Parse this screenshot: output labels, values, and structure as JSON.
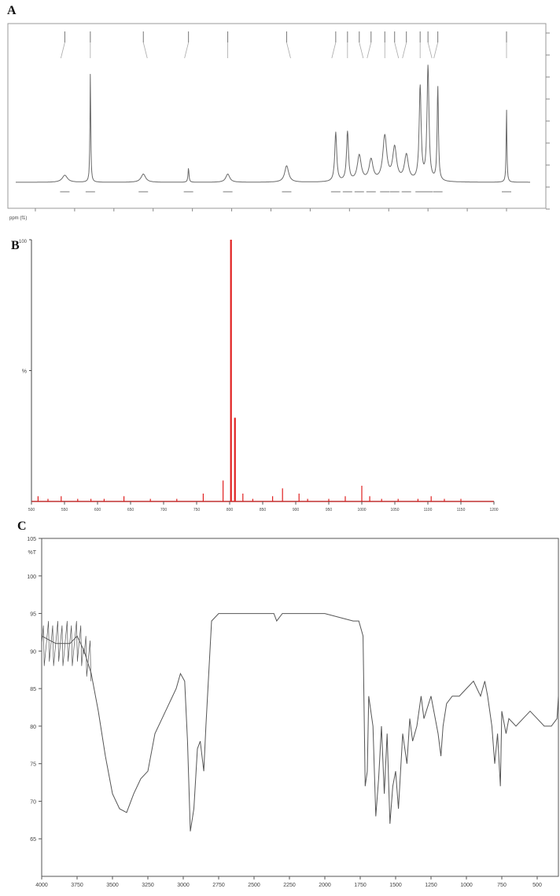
{
  "panels": {
    "a": {
      "letter": "A"
    },
    "b": {
      "letter": "B"
    },
    "c": {
      "letter": "C"
    }
  },
  "chart_data": [
    {
      "type": "line",
      "panel": "A",
      "title": "",
      "xlabel": "ppm (f1)",
      "ylabel": "",
      "reversed_x": true,
      "xlim": [
        12.5,
        0.0
      ],
      "grid": false,
      "legend": "none",
      "color": "#6a6a6a",
      "peaks": [
        {
          "ppm": 11.25,
          "h": 0.06,
          "w": 0.08
        },
        {
          "ppm": 10.6,
          "h": 0.92,
          "w": 0.012
        },
        {
          "ppm": 9.25,
          "h": 0.07,
          "w": 0.07
        },
        {
          "ppm": 8.1,
          "h": 0.12,
          "w": 0.015
        },
        {
          "ppm": 7.1,
          "h": 0.07,
          "w": 0.06
        },
        {
          "ppm": 5.6,
          "h": 0.14,
          "w": 0.06
        },
        {
          "ppm": 4.35,
          "h": 0.42,
          "w": 0.03
        },
        {
          "ppm": 4.05,
          "h": 0.42,
          "w": 0.03
        },
        {
          "ppm": 3.75,
          "h": 0.22,
          "w": 0.06
        },
        {
          "ppm": 3.45,
          "h": 0.18,
          "w": 0.06
        },
        {
          "ppm": 3.1,
          "h": 0.38,
          "w": 0.06
        },
        {
          "ppm": 2.85,
          "h": 0.28,
          "w": 0.06
        },
        {
          "ppm": 2.55,
          "h": 0.22,
          "w": 0.06
        },
        {
          "ppm": 2.2,
          "h": 0.8,
          "w": 0.03
        },
        {
          "ppm": 2.0,
          "h": 0.97,
          "w": 0.03
        },
        {
          "ppm": 1.75,
          "h": 0.8,
          "w": 0.02
        },
        {
          "ppm": 0.0,
          "h": 0.62,
          "w": 0.012
        }
      ]
    },
    {
      "type": "bar",
      "panel": "B",
      "title": "",
      "xlabel": "",
      "ylabel": "%",
      "xlim": [
        500,
        1200
      ],
      "ylim": [
        0,
        100
      ],
      "grid": false,
      "legend": "top-right",
      "color": "#e02020",
      "x_ticks": [
        500,
        550,
        600,
        650,
        700,
        750,
        800,
        850,
        900,
        950,
        1000,
        1050,
        1100,
        1150,
        1200
      ],
      "series": [
        {
          "x": [
            510,
            525,
            545,
            570,
            590,
            610,
            640,
            680,
            720,
            760,
            790,
            802,
            808,
            820,
            835,
            865,
            880,
            905,
            918,
            950,
            975,
            1000,
            1012,
            1030,
            1055,
            1085,
            1105,
            1125,
            1150
          ],
          "values": [
            2,
            1,
            2,
            1,
            1,
            1,
            2,
            1,
            1,
            3,
            8,
            100,
            32,
            3,
            1,
            2,
            5,
            3,
            1,
            1,
            2,
            6,
            2,
            1,
            1,
            1,
            2,
            1,
            1
          ]
        }
      ]
    },
    {
      "type": "line",
      "panel": "C",
      "title": "",
      "xlabel": "",
      "ylabel": "%T",
      "reversed_x": true,
      "xlim": [
        4000,
        350
      ],
      "ylim": [
        60,
        105
      ],
      "grid": false,
      "legend": "none",
      "color": "#555555",
      "x_ticks": [
        4000,
        3750,
        3500,
        3250,
        3000,
        2750,
        2500,
        2250,
        2000,
        1750,
        1500,
        1250,
        1000,
        750,
        500
      ],
      "y_ticks": [
        65,
        70,
        75,
        80,
        85,
        90,
        95,
        100,
        105
      ],
      "series": [
        {
          "x": [
            4000,
            3900,
            3800,
            3750,
            3700,
            3650,
            3600,
            3550,
            3500,
            3450,
            3400,
            3350,
            3300,
            3250,
            3200,
            3150,
            3100,
            3050,
            3020,
            2990,
            2970,
            2950,
            2925,
            2900,
            2880,
            2855,
            2840,
            2800,
            2750,
            2700,
            2500,
            2360,
            2340,
            2300,
            2250,
            2000,
            1800,
            1760,
            1730,
            1715,
            1700,
            1690,
            1660,
            1640,
            1620,
            1600,
            1580,
            1560,
            1540,
            1520,
            1500,
            1480,
            1450,
            1420,
            1400,
            1380,
            1350,
            1320,
            1300,
            1250,
            1200,
            1180,
            1165,
            1140,
            1100,
            1050,
            1000,
            950,
            900,
            870,
            850,
            820,
            800,
            780,
            760,
            750,
            720,
            700,
            650,
            600,
            550,
            500,
            450,
            400,
            360,
            350
          ],
          "values": [
            92,
            91,
            91,
            92,
            90,
            87,
            82,
            76,
            71,
            69,
            68.5,
            71,
            73,
            74,
            79,
            81,
            83,
            85,
            87,
            86,
            78,
            66,
            69,
            77,
            78,
            74,
            80,
            94,
            95,
            95,
            95,
            95,
            94,
            95,
            95,
            95,
            94,
            94,
            92,
            72,
            74,
            84,
            80,
            68,
            73,
            80,
            71,
            79,
            67,
            72,
            74,
            69,
            79,
            75,
            81,
            78,
            80,
            84,
            81,
            84,
            79,
            76,
            80,
            83,
            84,
            84,
            85,
            86,
            84,
            86,
            84,
            80,
            75,
            79,
            72,
            82,
            79,
            81,
            80,
            81,
            82,
            81,
            80,
            80,
            81,
            84
          ]
        }
      ]
    }
  ]
}
